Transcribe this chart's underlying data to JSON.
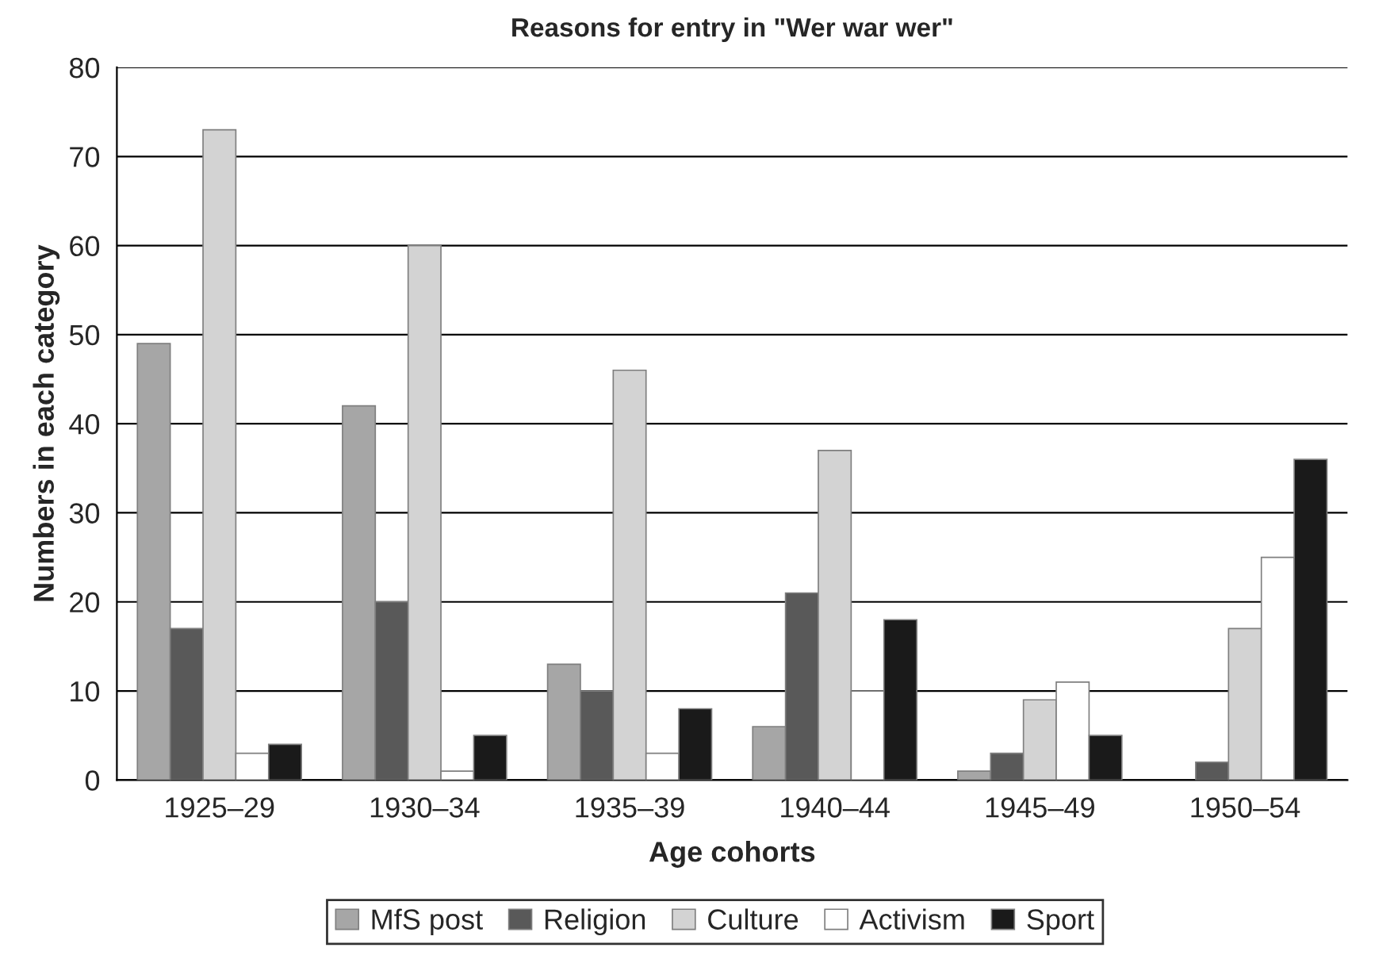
{
  "chart_data": {
    "type": "bar",
    "title": "Reasons for entry in \"Wer war wer\"",
    "xlabel": "Age cohorts",
    "ylabel": "Numbers in each category",
    "categories": [
      "1925–29",
      "1930–34",
      "1935–39",
      "1940–44",
      "1945–49",
      "1950–54"
    ],
    "series": [
      {
        "name": "MfS post",
        "color": "#a6a6a6",
        "values": [
          49,
          42,
          13,
          6,
          1,
          0
        ]
      },
      {
        "name": "Religion",
        "color": "#595959",
        "values": [
          17,
          20,
          10,
          21,
          3,
          2
        ]
      },
      {
        "name": "Culture",
        "color": "#d3d3d3",
        "values": [
          73,
          60,
          46,
          37,
          9,
          17
        ]
      },
      {
        "name": "Activism",
        "color": "#ffffff",
        "values": [
          3,
          1,
          3,
          10,
          11,
          25
        ]
      },
      {
        "name": "Sport",
        "color": "#1a1a1a",
        "values": [
          4,
          5,
          8,
          18,
          5,
          36
        ]
      }
    ],
    "ylim": [
      0,
      80
    ],
    "yticks": [
      0,
      10,
      20,
      30,
      40,
      50,
      60,
      70,
      80
    ],
    "grid": "y",
    "legend": "bottom"
  }
}
